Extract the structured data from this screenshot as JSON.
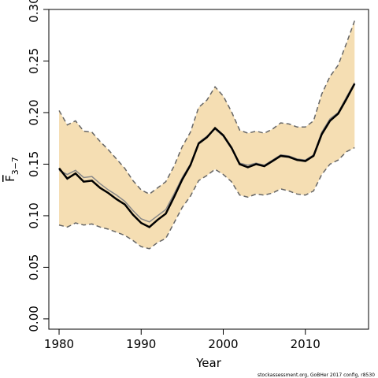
{
  "chart_data": {
    "type": "line",
    "xlabel": "Year",
    "ylabel": "F",
    "ylabel_sub": "3−7",
    "footnote": "stockassessment.org, GoBHer 2017 config, r8530",
    "x": [
      1980,
      1981,
      1982,
      1983,
      1984,
      1985,
      1986,
      1987,
      1988,
      1989,
      1990,
      1991,
      1992,
      1993,
      1994,
      1995,
      1996,
      1997,
      1998,
      1999,
      2000,
      2001,
      2002,
      2003,
      2004,
      2005,
      2006,
      2007,
      2008,
      2009,
      2010,
      2011,
      2012,
      2013,
      2014,
      2015,
      2016
    ],
    "band": {
      "color": "#f5deb3",
      "edge_color": "#666666",
      "edge_dashed": true,
      "upper": [
        0.202,
        0.188,
        0.192,
        0.182,
        0.181,
        0.172,
        0.164,
        0.155,
        0.146,
        0.134,
        0.125,
        0.121,
        0.127,
        0.133,
        0.148,
        0.167,
        0.181,
        0.205,
        0.212,
        0.225,
        0.216,
        0.201,
        0.183,
        0.18,
        0.182,
        0.18,
        0.184,
        0.19,
        0.189,
        0.186,
        0.186,
        0.192,
        0.218,
        0.235,
        0.246,
        0.267,
        0.289
      ],
      "lower": [
        0.091,
        0.089,
        0.093,
        0.091,
        0.092,
        0.089,
        0.087,
        0.084,
        0.081,
        0.076,
        0.07,
        0.068,
        0.074,
        0.078,
        0.093,
        0.108,
        0.119,
        0.134,
        0.139,
        0.145,
        0.14,
        0.133,
        0.12,
        0.118,
        0.121,
        0.12,
        0.122,
        0.126,
        0.124,
        0.121,
        0.12,
        0.124,
        0.14,
        0.15,
        0.154,
        0.162,
        0.166
      ]
    },
    "series": [
      {
        "color": "#888888",
        "width": 1.5,
        "values": [
          0.144,
          0.14,
          0.144,
          0.137,
          0.138,
          0.131,
          0.125,
          0.12,
          0.114,
          0.105,
          0.097,
          0.094,
          0.1,
          0.106,
          0.121,
          0.137,
          0.15,
          0.171,
          0.177,
          0.184,
          0.177,
          0.165,
          0.151,
          0.149,
          0.151,
          0.149,
          0.154,
          0.159,
          0.158,
          0.155,
          0.154,
          0.159,
          0.181,
          0.194,
          0.2,
          0.215,
          0.229
        ]
      },
      {
        "color": "#000000",
        "width": 2.5,
        "values": [
          0.146,
          0.136,
          0.141,
          0.133,
          0.134,
          0.127,
          0.122,
          0.116,
          0.111,
          0.101,
          0.093,
          0.089,
          0.096,
          0.102,
          0.118,
          0.135,
          0.149,
          0.17,
          0.176,
          0.185,
          0.178,
          0.166,
          0.15,
          0.147,
          0.15,
          0.148,
          0.153,
          0.158,
          0.157,
          0.154,
          0.153,
          0.158,
          0.179,
          0.192,
          0.199,
          0.213,
          0.228
        ]
      }
    ],
    "xlim": [
      1978.75,
      2017.7
    ],
    "ylim": [
      -0.01,
      0.3
    ],
    "xticks": [
      1980,
      1990,
      2000,
      2010
    ],
    "yticks": [
      {
        "value": 0,
        "label": "0.00"
      },
      {
        "value": 0.05,
        "label": "0.05"
      },
      {
        "value": 0.1,
        "label": "0.10"
      },
      {
        "value": 0.15,
        "label": "0.15"
      },
      {
        "value": 0.2,
        "label": "0.20"
      },
      {
        "value": 0.25,
        "label": "0.25"
      },
      {
        "value": 0.3,
        "label": "0.30"
      }
    ]
  }
}
